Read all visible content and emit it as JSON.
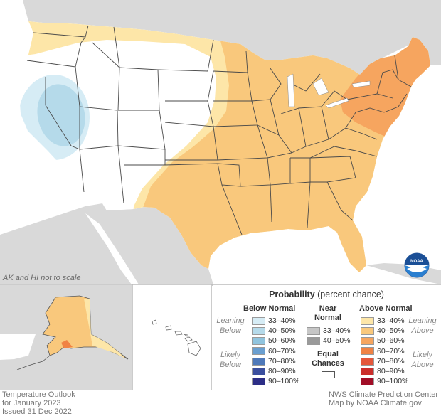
{
  "note": "AK and HI not to scale",
  "credits": {
    "left": [
      "Temperature Outlook",
      "for January 2023",
      "Issued 31 Dec 2022"
    ],
    "right": [
      "NWS Climate Prediction Center",
      "Map by NOAA Climate.gov"
    ]
  },
  "logo": {
    "text": "NOAA"
  },
  "legend": {
    "title_bold": "Probability",
    "title_rest": " (percent chance)",
    "below_header": "Below Normal",
    "near_header": [
      "Near",
      "Normal"
    ],
    "above_header": "Above Normal",
    "leaning_below": [
      "Leaning",
      "Below"
    ],
    "likely_below": [
      "Likely",
      "Below"
    ],
    "leaning_above": [
      "Leaning",
      "Above"
    ],
    "likely_above": [
      "Likely",
      "Above"
    ],
    "below_rows": [
      "33–40%",
      "40–50%",
      "50–60%",
      "60–70%",
      "70–80%",
      "80–90%",
      "90–100%"
    ],
    "near_rows": [
      "33–40%",
      "40–50%"
    ],
    "above_rows": [
      "33–40%",
      "40–50%",
      "50–60%",
      "60–70%",
      "70–80%",
      "80–90%",
      "90–100%"
    ],
    "equal": [
      "Equal",
      "Chances"
    ],
    "below_colors": [
      "#d6ecf5",
      "#b5daea",
      "#90c4de",
      "#6a9fd0",
      "#4f79b9",
      "#3b4f9e",
      "#2c2e86"
    ],
    "near_colors": [
      "#c6c6c6",
      "#9a9a9a"
    ],
    "above_colors": [
      "#fde6a8",
      "#f9c87c",
      "#f6a55f",
      "#f08244",
      "#e4573b",
      "#cb2f2c",
      "#a10d26"
    ]
  },
  "colors": {
    "land_background": "#d9d9d9",
    "ocean": "#ffffff",
    "equal_chances": "#ffffff",
    "above_33_40": "#fde6a8",
    "above_40_50": "#f9c87c",
    "above_50_60": "#f6a55f",
    "above_60_70": "#f08244",
    "below_33_40": "#d6ecf5",
    "below_40_50": "#b5daea"
  }
}
